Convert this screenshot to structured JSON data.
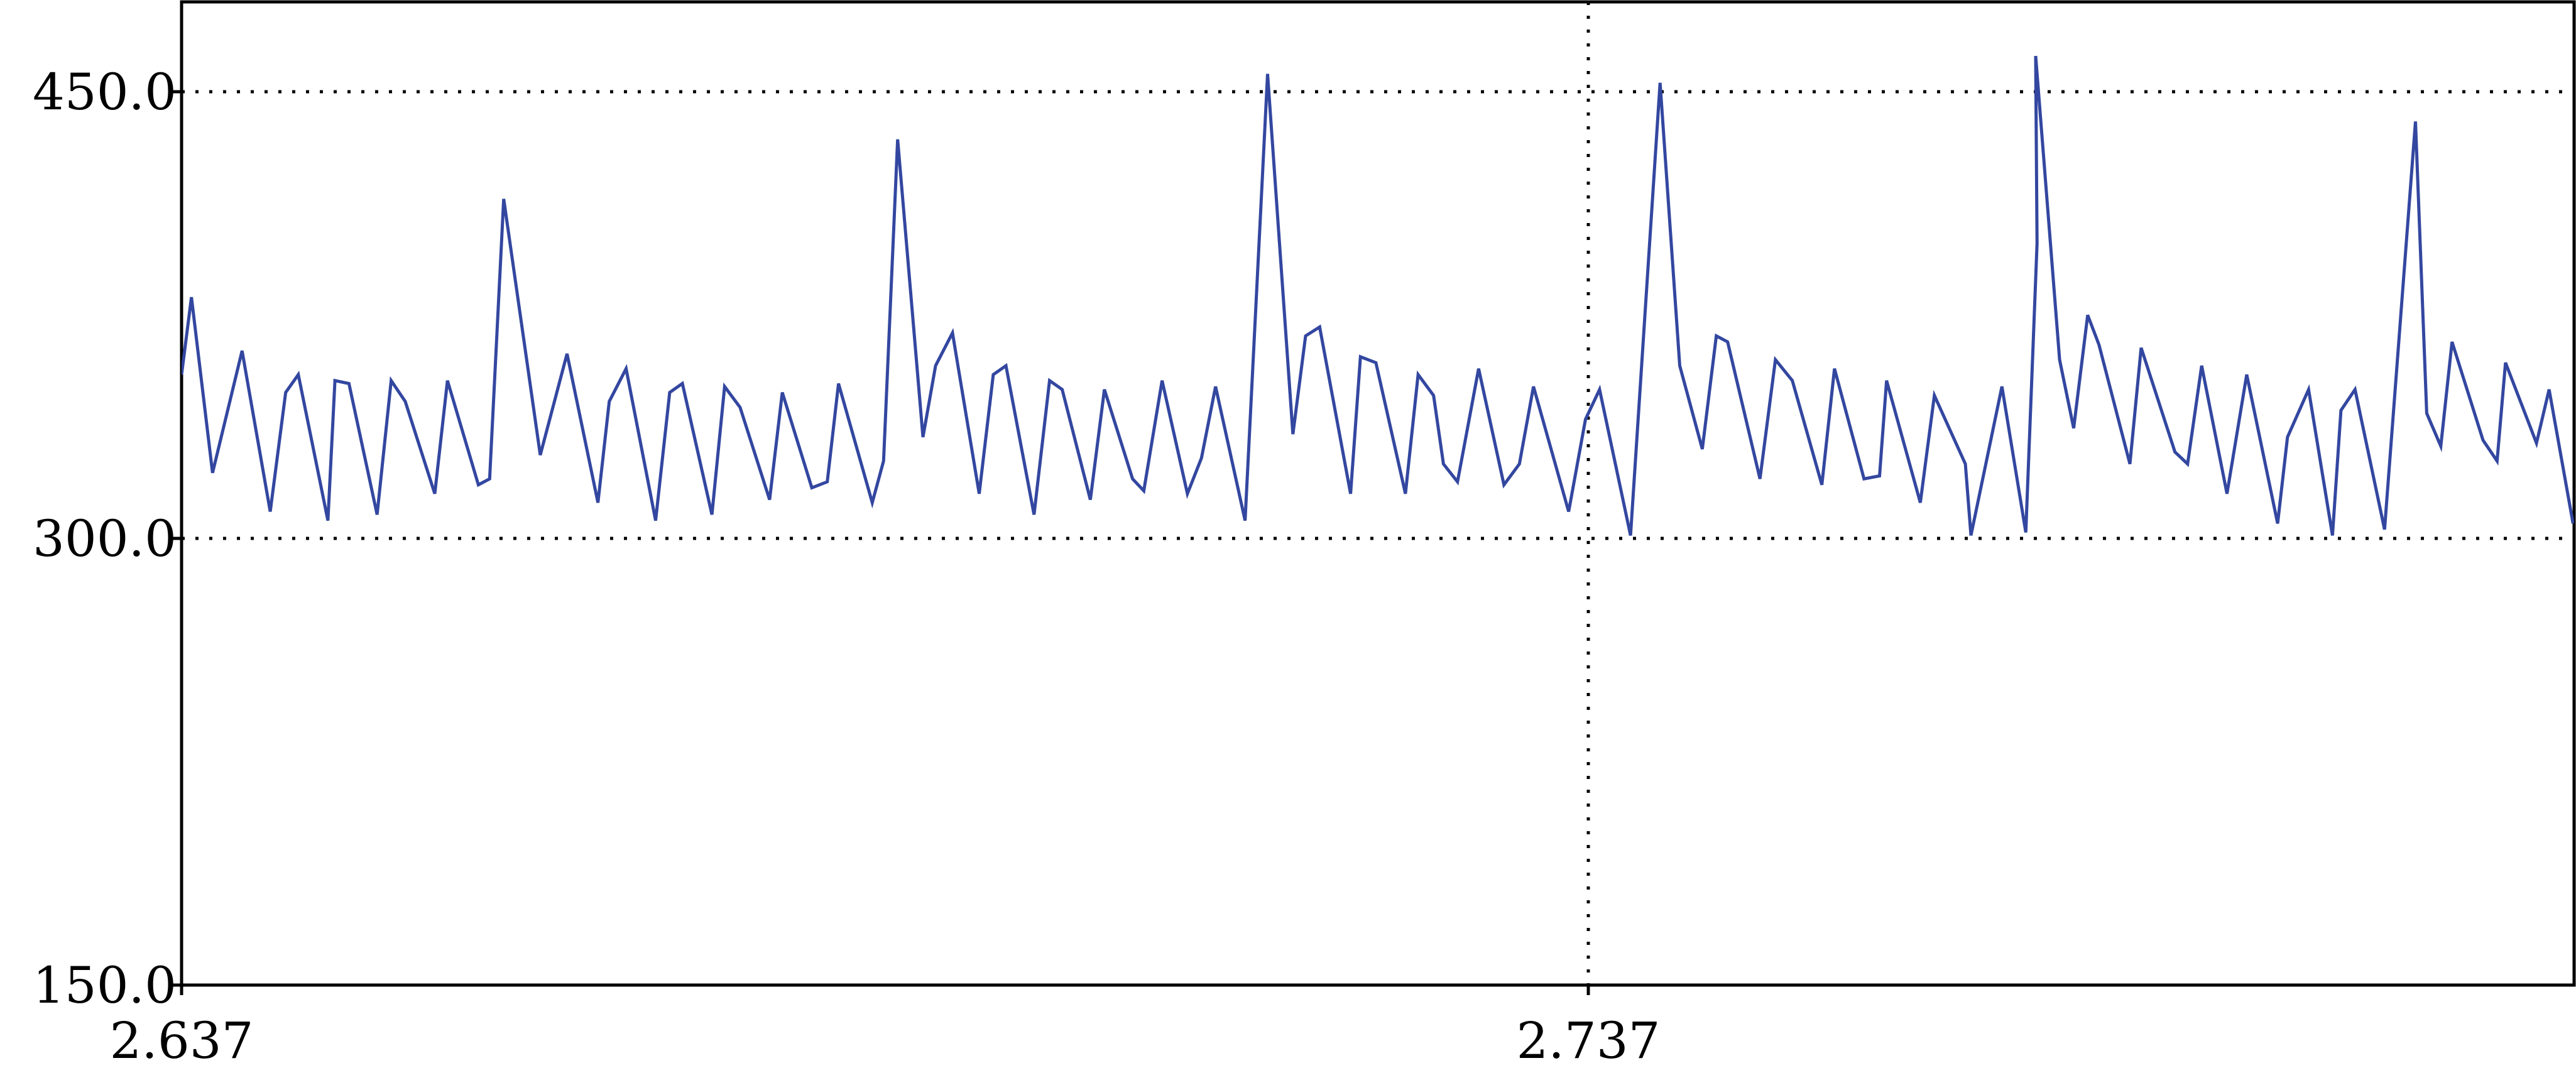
{
  "chart_data": {
    "type": "line",
    "title": "",
    "xlabel": "",
    "ylabel": "",
    "xlim": [
      2.637,
      2.807
    ],
    "ylim": [
      150.0,
      480.0
    ],
    "x_ticks": [
      {
        "value": 2.637,
        "label": "2.637"
      },
      {
        "value": 2.737,
        "label": "2.737"
      }
    ],
    "y_ticks": [
      {
        "value": 150.0,
        "label": "150.0"
      },
      {
        "value": 300.0,
        "label": "300.0"
      },
      {
        "value": 450.0,
        "label": "450.0"
      }
    ],
    "grid": {
      "horizontal": [
        300.0,
        450.0
      ],
      "vertical": [
        2.737
      ],
      "style": "dotted"
    },
    "legend": "none",
    "series": [
      {
        "color": "#3347a0",
        "points": [
          [
            2.637,
            355
          ],
          [
            2.6377,
            381
          ],
          [
            2.6392,
            322
          ],
          [
            2.6413,
            363
          ],
          [
            2.6433,
            309
          ],
          [
            2.6444,
            349
          ],
          [
            2.6453,
            355
          ],
          [
            2.6474,
            306
          ],
          [
            2.6479,
            353
          ],
          [
            2.6489,
            352
          ],
          [
            2.6509,
            308
          ],
          [
            2.6519,
            353
          ],
          [
            2.6529,
            346
          ],
          [
            2.655,
            315
          ],
          [
            2.6559,
            353
          ],
          [
            2.6581,
            318
          ],
          [
            2.6589,
            320
          ],
          [
            2.6599,
            414
          ],
          [
            2.6625,
            328
          ],
          [
            2.6644,
            362
          ],
          [
            2.6666,
            312
          ],
          [
            2.6674,
            346
          ],
          [
            2.6686,
            357
          ],
          [
            2.6707,
            306
          ],
          [
            2.6717,
            349
          ],
          [
            2.6726,
            352
          ],
          [
            2.6747,
            308
          ],
          [
            2.6756,
            351
          ],
          [
            2.6767,
            344
          ],
          [
            2.6788,
            313
          ],
          [
            2.6797,
            349
          ],
          [
            2.6818,
            317
          ],
          [
            2.6829,
            319
          ],
          [
            2.6837,
            352
          ],
          [
            2.6861,
            312
          ],
          [
            2.6869,
            326
          ],
          [
            2.6879,
            434
          ],
          [
            2.6897,
            334
          ],
          [
            2.6906,
            358
          ],
          [
            2.6918,
            369
          ],
          [
            2.6937,
            315
          ],
          [
            2.6947,
            355
          ],
          [
            2.6956,
            358
          ],
          [
            2.6976,
            308
          ],
          [
            2.6987,
            353
          ],
          [
            2.6996,
            350
          ],
          [
            2.7016,
            313
          ],
          [
            2.7026,
            350
          ],
          [
            2.7046,
            320
          ],
          [
            2.7054,
            316
          ],
          [
            2.7067,
            353
          ],
          [
            2.7085,
            315
          ],
          [
            2.7095,
            327
          ],
          [
            2.7105,
            351
          ],
          [
            2.7126,
            306
          ],
          [
            2.7142,
            456
          ],
          [
            2.716,
            335
          ],
          [
            2.7169,
            368
          ],
          [
            2.7179,
            371
          ],
          [
            2.7201,
            315
          ],
          [
            2.7208,
            361
          ],
          [
            2.7219,
            359
          ],
          [
            2.724,
            315
          ],
          [
            2.7249,
            355
          ],
          [
            2.726,
            348
          ],
          [
            2.7267,
            325
          ],
          [
            2.7277,
            319
          ],
          [
            2.7292,
            357
          ],
          [
            2.731,
            318
          ],
          [
            2.7321,
            325
          ],
          [
            2.7331,
            351
          ],
          [
            2.7356,
            309
          ],
          [
            2.7368,
            340
          ],
          [
            2.7378,
            350
          ],
          [
            2.74,
            301
          ],
          [
            2.7421,
            453
          ],
          [
            2.7435,
            358
          ],
          [
            2.7451,
            330
          ],
          [
            2.7461,
            368
          ],
          [
            2.7469,
            366
          ],
          [
            2.7492,
            320
          ],
          [
            2.7503,
            360
          ],
          [
            2.7515,
            353
          ],
          [
            2.7536,
            318
          ],
          [
            2.7545,
            357
          ],
          [
            2.7566,
            320
          ],
          [
            2.7577,
            321
          ],
          [
            2.7582,
            353
          ],
          [
            2.7606,
            312
          ],
          [
            2.7616,
            348
          ],
          [
            2.7638,
            325
          ],
          [
            2.7642,
            301
          ],
          [
            2.7664,
            351
          ],
          [
            2.7681,
            302
          ],
          [
            2.7689,
            399
          ],
          [
            2.7688,
            462
          ],
          [
            2.7705,
            360
          ],
          [
            2.7715,
            337
          ],
          [
            2.7725,
            375
          ],
          [
            2.7733,
            365
          ],
          [
            2.7755,
            325
          ],
          [
            2.7763,
            364
          ],
          [
            2.7787,
            329
          ],
          [
            2.7796,
            325
          ],
          [
            2.7806,
            358
          ],
          [
            2.7824,
            315
          ],
          [
            2.7838,
            355
          ],
          [
            2.786,
            305
          ],
          [
            2.7867,
            334
          ],
          [
            2.7882,
            350
          ],
          [
            2.7899,
            301
          ],
          [
            2.7905,
            343
          ],
          [
            2.7915,
            350
          ],
          [
            2.7936,
            303
          ],
          [
            2.7958,
            440
          ],
          [
            2.7966,
            342
          ],
          [
            2.7976,
            331
          ],
          [
            2.7984,
            366
          ],
          [
            2.8006,
            333
          ],
          [
            2.8016,
            326
          ],
          [
            2.8022,
            359
          ],
          [
            2.8044,
            332
          ],
          [
            2.8053,
            350
          ],
          [
            2.807,
            305
          ]
        ]
      }
    ]
  }
}
